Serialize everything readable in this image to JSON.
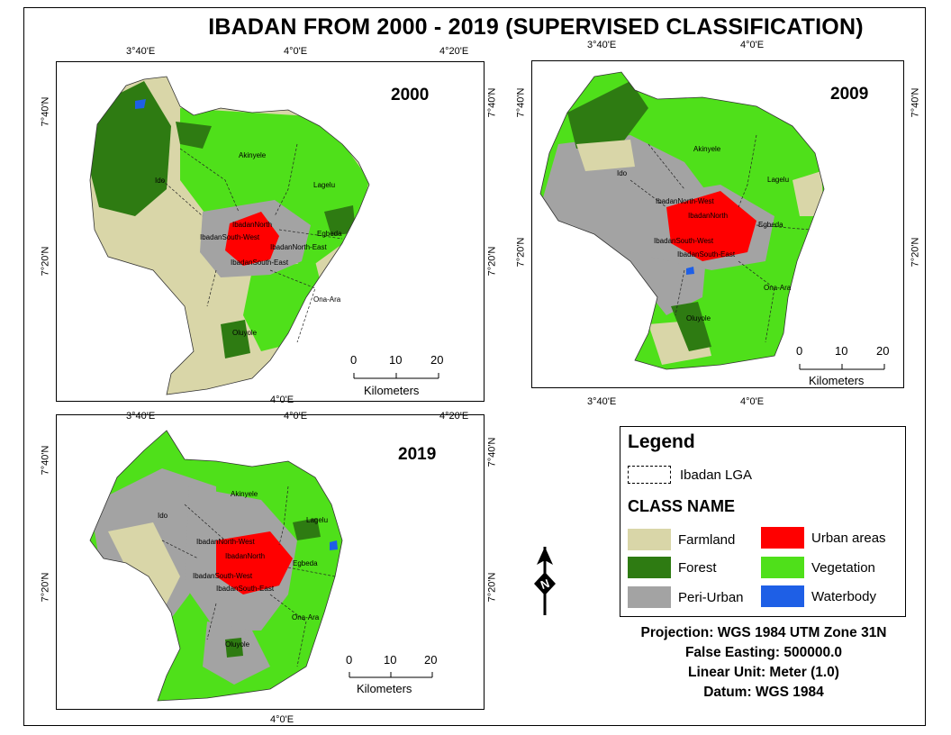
{
  "title": "IBADAN FROM 2000 - 2019 (SUPERVISED CLASSIFICATION)",
  "maps": [
    {
      "year": "2000",
      "top_ticks": [
        "3°40'E",
        "4°0'E",
        "4°20'E"
      ],
      "bottom_ticks": [
        "4°0'E"
      ],
      "left_ticks": [
        "7°40'N",
        "7°20'N"
      ],
      "right_ticks": [
        "7°40'N",
        "7°20'N"
      ],
      "place_labels": [
        "Akinyele",
        "Ido",
        "Lagelu",
        "IbadanNorth",
        "Egbeda",
        "IbadanSouth-West",
        "IbadanNorth-East",
        "IbadanSouth-East",
        "Ona-Ara",
        "Oluyole"
      ],
      "scale": [
        "0",
        "10",
        "20"
      ],
      "scale_unit": "Kilometers"
    },
    {
      "year": "2009",
      "top_ticks": [
        "3°40'E",
        "4°0'E"
      ],
      "bottom_ticks": [
        "3°40'E",
        "4°0'E"
      ],
      "left_ticks": [
        "7°40'N",
        "7°20'N"
      ],
      "right_ticks": [
        "7°40'N",
        "7°20'N"
      ],
      "place_labels": [
        "Akinyele",
        "Ido",
        "Lagelu",
        "IbadanNorth-West",
        "IbadanNorth",
        "Egbeda",
        "IbadanSouth-West",
        "IbadanSouth-East",
        "Ona-Ara",
        "Oluyole"
      ],
      "scale": [
        "0",
        "10",
        "20"
      ],
      "scale_unit": "Kilometers"
    },
    {
      "year": "2019",
      "top_ticks": [
        "3°40'E",
        "4°0'E",
        "4°20'E"
      ],
      "bottom_ticks": [
        "4°0'E"
      ],
      "left_ticks": [
        "7°40'N",
        "7°20'N"
      ],
      "right_ticks": [
        "7°40'N",
        "7°20'N"
      ],
      "place_labels": [
        "Akinyele",
        "Ido",
        "Lagelu",
        "IbadanNorth-West",
        "IbadanNorth",
        "Egbeda",
        "IbadanSouth-West",
        "IbadanSouth-East",
        "Ona-Ara",
        "Oluyole"
      ],
      "scale": [
        "0",
        "10",
        "20"
      ],
      "scale_unit": "Kilometers"
    }
  ],
  "legend": {
    "title": "Legend",
    "lga_label": "Ibadan LGA",
    "class_title": "CLASS NAME",
    "classes": [
      {
        "name": "Farmland",
        "color": "#d9d6a8"
      },
      {
        "name": "Forest",
        "color": "#2e7b12"
      },
      {
        "name": "Peri-Urban",
        "color": "#a3a3a3"
      },
      {
        "name": "Urban areas",
        "color": "#ff0000"
      },
      {
        "name": "Vegetation",
        "color": "#4fe01a"
      },
      {
        "name": "Waterbody",
        "color": "#1e5fe6"
      }
    ]
  },
  "north_label": "N",
  "projection": [
    "Projection: WGS 1984 UTM Zone 31N",
    "False Easting: 500000.0",
    "Linear Unit: Meter (1.0)",
    "Datum: WGS 1984"
  ]
}
